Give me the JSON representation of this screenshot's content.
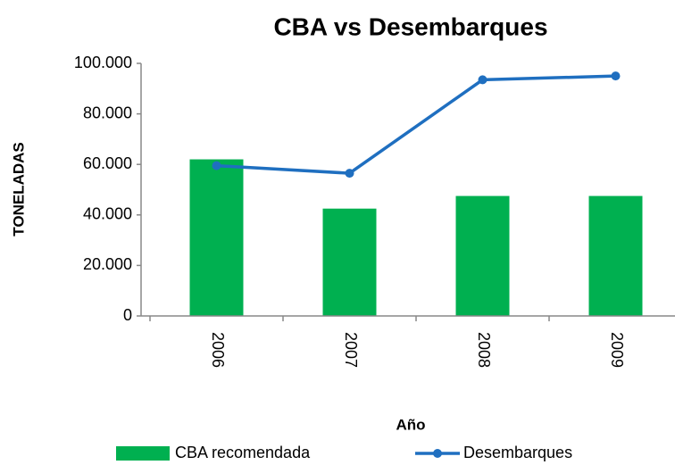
{
  "chart_data": {
    "type": "bar",
    "title": "CBA vs Desembarques",
    "y_label": "TONELADAS",
    "x_label": "Año",
    "categories": [
      "2006",
      "2007",
      "2008",
      "2009"
    ],
    "series": [
      {
        "name": "CBA recomendada",
        "type": "bar",
        "color": "#00b050",
        "values": [
          62000,
          42500,
          47500,
          47500
        ]
      },
      {
        "name": "Desembarques",
        "type": "line",
        "color": "#1f6fc0",
        "values": [
          59500,
          56500,
          93500,
          95000
        ]
      }
    ],
    "ylim": [
      0,
      100000
    ],
    "yticks": [
      0,
      {
        "value": 20000,
        "label": "20.000"
      },
      {
        "value": 40000,
        "label": "40.000"
      },
      {
        "value": 60000,
        "label": "60.000"
      },
      {
        "value": 80000,
        "label": "80.000"
      },
      {
        "value": 100000,
        "label": "100.000"
      }
    ],
    "legend": "bottom"
  }
}
